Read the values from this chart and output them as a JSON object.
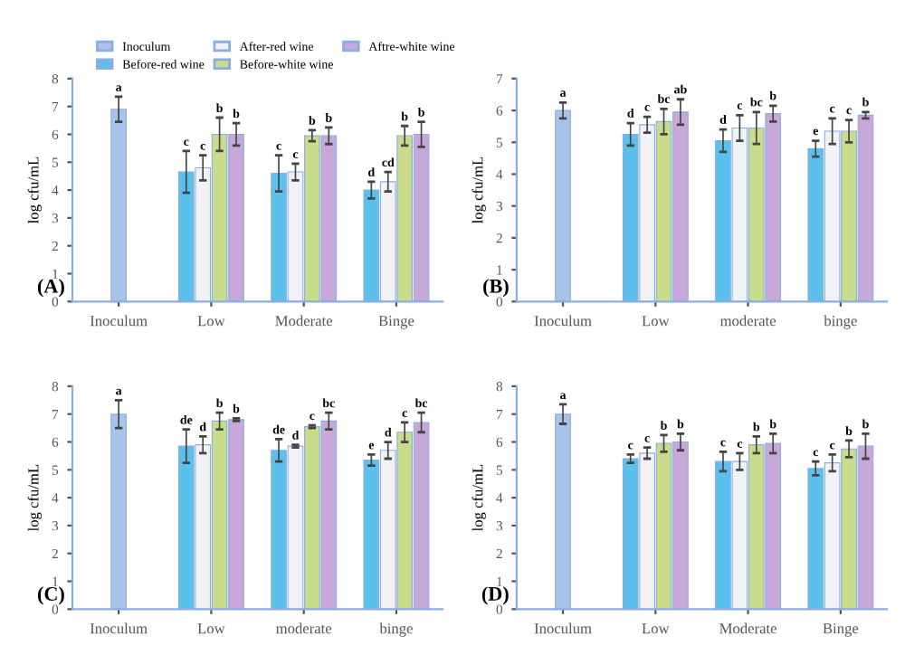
{
  "chart_data": [
    {
      "type": "bar",
      "ylabel": "log cfu/mL",
      "categories": [
        "Inoculum",
        "Low",
        "Moderate",
        "Binge"
      ],
      "ylim": [
        0,
        8
      ],
      "yticks": [
        0,
        1,
        2,
        3,
        4,
        5,
        6,
        7,
        8
      ],
      "legend": "top",
      "annotations": [
        "(A)"
      ],
      "series": [
        {
          "name": "Inoculum",
          "color": "#a9c4e8",
          "values": [
            6.9,
            null,
            null,
            null
          ],
          "errors": [
            0.45,
            null,
            null,
            null
          ],
          "value_labels": [
            "a",
            null,
            null,
            null
          ]
        },
        {
          "name": "Before-red wine",
          "color": "#5bc0eb",
          "values": [
            null,
            4.65,
            4.6,
            4.0
          ],
          "errors": [
            null,
            0.75,
            0.65,
            0.3
          ],
          "value_labels": [
            null,
            "c",
            "c",
            "d"
          ]
        },
        {
          "name": "After-red wine",
          "color": "#f2f2f6",
          "values": [
            null,
            4.8,
            4.65,
            4.3
          ],
          "errors": [
            null,
            0.45,
            0.3,
            0.35
          ],
          "value_labels": [
            null,
            "c",
            "c",
            "cd"
          ]
        },
        {
          "name": "Before-white wine",
          "color": "#c8dc8c",
          "values": [
            null,
            6.0,
            5.95,
            5.95
          ],
          "errors": [
            null,
            0.6,
            0.2,
            0.35
          ],
          "value_labels": [
            null,
            "b",
            "b",
            "b"
          ]
        },
        {
          "name": "Aftre-white wine",
          "color": "#c8a8d8",
          "values": [
            null,
            6.0,
            5.95,
            6.0
          ],
          "errors": [
            null,
            0.4,
            0.3,
            0.45
          ],
          "value_labels": [
            null,
            "b",
            "b",
            "b"
          ]
        }
      ]
    },
    {
      "type": "bar",
      "ylabel": "log cfu/mL",
      "categories": [
        "Inoculum",
        "Low",
        "moderate",
        "binge"
      ],
      "ylim": [
        0,
        7
      ],
      "yticks": [
        0,
        1,
        2,
        3,
        4,
        5,
        6,
        7
      ],
      "annotations": [
        "(B)"
      ],
      "series": [
        {
          "color": "#a9c4e8",
          "values": [
            6.0,
            null,
            null,
            null
          ],
          "errors": [
            0.25,
            null,
            null,
            null
          ],
          "value_labels": [
            "a",
            null,
            null,
            null
          ]
        },
        {
          "color": "#5bc0eb",
          "values": [
            null,
            5.25,
            5.05,
            4.8
          ],
          "errors": [
            null,
            0.35,
            0.35,
            0.25
          ],
          "value_labels": [
            null,
            "d",
            "d",
            "e"
          ]
        },
        {
          "color": "#f2f2f6",
          "values": [
            null,
            5.55,
            5.45,
            5.35
          ],
          "errors": [
            null,
            0.25,
            0.4,
            0.4
          ],
          "value_labels": [
            null,
            "c",
            "c",
            "c"
          ]
        },
        {
          "color": "#c8dc8c",
          "values": [
            null,
            5.65,
            5.45,
            5.35
          ],
          "errors": [
            null,
            0.4,
            0.5,
            0.35
          ],
          "value_labels": [
            null,
            "bc",
            "bc",
            "c"
          ]
        },
        {
          "color": "#c8a8d8",
          "values": [
            null,
            5.95,
            5.9,
            5.85
          ],
          "errors": [
            null,
            0.4,
            0.25,
            0.1
          ],
          "value_labels": [
            null,
            "ab",
            "b",
            "b"
          ]
        }
      ]
    },
    {
      "type": "bar",
      "ylabel": "log cfu/mL",
      "categories": [
        "Inoculum",
        "Low",
        "moderate",
        "binge"
      ],
      "ylim": [
        0,
        8
      ],
      "yticks": [
        0,
        1,
        2,
        3,
        4,
        5,
        6,
        7,
        8
      ],
      "annotations": [
        "(C)"
      ],
      "series": [
        {
          "color": "#a9c4e8",
          "values": [
            7.0,
            null,
            null,
            null
          ],
          "errors": [
            0.5,
            null,
            null,
            null
          ],
          "value_labels": [
            "a",
            null,
            null,
            null
          ]
        },
        {
          "color": "#5bc0eb",
          "values": [
            null,
            5.85,
            5.7,
            5.35
          ],
          "errors": [
            null,
            0.6,
            0.4,
            0.2
          ],
          "value_labels": [
            null,
            "de",
            "de",
            "e"
          ]
        },
        {
          "color": "#f2f2f6",
          "values": [
            null,
            5.9,
            5.85,
            5.7
          ],
          "errors": [
            null,
            0.3,
            0.05,
            0.3
          ],
          "value_labels": [
            null,
            "d",
            "d",
            "d"
          ]
        },
        {
          "color": "#c8dc8c",
          "values": [
            null,
            6.75,
            6.55,
            6.35
          ],
          "errors": [
            null,
            0.3,
            0.05,
            0.35
          ],
          "value_labels": [
            null,
            "b",
            "c",
            "c"
          ]
        },
        {
          "color": "#c8a8d8",
          "values": [
            null,
            6.8,
            6.75,
            6.7
          ],
          "errors": [
            null,
            0.05,
            0.3,
            0.35
          ],
          "value_labels": [
            null,
            "b",
            "bc",
            "bc"
          ]
        }
      ]
    },
    {
      "type": "bar",
      "ylabel": "log cfu/mL",
      "categories": [
        "Inoculum",
        "Low",
        "Moderate",
        "Binge"
      ],
      "ylim": [
        0,
        8
      ],
      "yticks": [
        0,
        1,
        2,
        3,
        4,
        5,
        6,
        7,
        8
      ],
      "annotations": [
        "(D)"
      ],
      "series": [
        {
          "color": "#a9c4e8",
          "values": [
            7.0,
            null,
            null,
            null
          ],
          "errors": [
            0.35,
            null,
            null,
            null
          ],
          "value_labels": [
            "a",
            null,
            null,
            null
          ]
        },
        {
          "color": "#5bc0eb",
          "values": [
            null,
            5.4,
            5.3,
            5.05
          ],
          "errors": [
            null,
            0.15,
            0.35,
            0.25
          ],
          "value_labels": [
            null,
            "c",
            "c",
            "c"
          ]
        },
        {
          "color": "#f2f2f6",
          "values": [
            null,
            5.6,
            5.3,
            5.25
          ],
          "errors": [
            null,
            0.2,
            0.3,
            0.3
          ],
          "value_labels": [
            null,
            "c",
            "c",
            "c"
          ]
        },
        {
          "color": "#c8dc8c",
          "values": [
            null,
            5.95,
            5.9,
            5.75
          ],
          "errors": [
            null,
            0.3,
            0.3,
            0.3
          ],
          "value_labels": [
            null,
            "b",
            "b",
            "b"
          ]
        },
        {
          "color": "#c8a8d8",
          "values": [
            null,
            6.0,
            5.95,
            5.85
          ],
          "errors": [
            null,
            0.3,
            0.35,
            0.45
          ],
          "value_labels": [
            null,
            "b",
            "b",
            "b"
          ]
        }
      ]
    }
  ]
}
